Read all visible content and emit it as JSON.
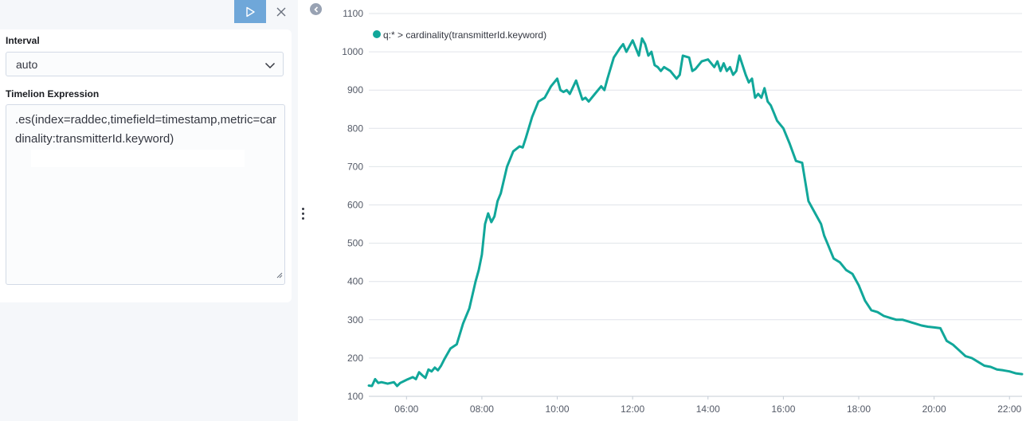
{
  "toolbar": {
    "run_icon": "play-icon",
    "close_icon": "close-icon"
  },
  "form": {
    "interval_label": "Interval",
    "interval_value": "auto",
    "expression_label": "Timelion Expression",
    "expression_value": ".es(index=raddec,timefield=timestamp,metric=cardinality:transmitterId.keyword)"
  },
  "colors": {
    "series": "#11a79a",
    "run_button": "#6fa7d9",
    "sidebar_bg": "#f5f7fa"
  },
  "chart_data": {
    "type": "line",
    "title": "",
    "xlabel": "",
    "ylabel": "",
    "legend_position": "top-left",
    "grid": true,
    "ylim": [
      100,
      1100
    ],
    "xlim": [
      "05:00",
      "22:20"
    ],
    "y_ticks": [
      "100",
      "200",
      "300",
      "400",
      "500",
      "600",
      "700",
      "800",
      "900",
      "1000",
      "1100"
    ],
    "x_ticks": [
      "06:00",
      "08:00",
      "10:00",
      "12:00",
      "14:00",
      "16:00",
      "18:00",
      "20:00",
      "22:00"
    ],
    "series": [
      {
        "name": "q:* > cardinality(transmitterId.keyword)",
        "color": "#11a79a",
        "x": [
          "05:00",
          "05:05",
          "05:10",
          "05:15",
          "05:20",
          "05:30",
          "05:40",
          "05:45",
          "05:50",
          "06:00",
          "06:10",
          "06:15",
          "06:20",
          "06:25",
          "06:30",
          "06:35",
          "06:40",
          "06:45",
          "06:50",
          "06:55",
          "07:00",
          "07:10",
          "07:20",
          "07:30",
          "07:40",
          "07:50",
          "07:55",
          "08:00",
          "08:05",
          "08:10",
          "08:15",
          "08:20",
          "08:25",
          "08:30",
          "08:40",
          "08:50",
          "09:00",
          "09:05",
          "09:10",
          "09:20",
          "09:30",
          "09:40",
          "09:50",
          "10:00",
          "10:05",
          "10:10",
          "10:15",
          "10:20",
          "10:30",
          "10:40",
          "10:45",
          "10:50",
          "11:00",
          "11:10",
          "11:15",
          "11:20",
          "11:30",
          "11:40",
          "11:45",
          "11:50",
          "12:00",
          "12:10",
          "12:15",
          "12:20",
          "12:25",
          "12:30",
          "12:35",
          "12:40",
          "12:45",
          "12:50",
          "13:00",
          "13:10",
          "13:15",
          "13:20",
          "13:30",
          "13:35",
          "13:40",
          "13:50",
          "14:00",
          "14:10",
          "14:15",
          "14:20",
          "14:25",
          "14:30",
          "14:35",
          "14:40",
          "14:45",
          "14:50",
          "15:00",
          "15:05",
          "15:10",
          "15:15",
          "15:20",
          "15:25",
          "15:30",
          "15:35",
          "15:40",
          "15:45",
          "15:50",
          "16:00",
          "16:10",
          "16:20",
          "16:30",
          "16:40",
          "16:50",
          "17:00",
          "17:05",
          "17:10",
          "17:20",
          "17:30",
          "17:40",
          "17:50",
          "18:00",
          "18:10",
          "18:20",
          "18:30",
          "18:40",
          "18:50",
          "19:00",
          "19:10",
          "19:20",
          "19:30",
          "19:40",
          "19:50",
          "20:00",
          "20:10",
          "20:20",
          "20:30",
          "20:40",
          "20:50",
          "21:00",
          "21:10",
          "21:20",
          "21:30",
          "21:40",
          "21:50",
          "22:00",
          "22:10",
          "22:20"
        ],
        "values": [
          128,
          127,
          145,
          135,
          137,
          133,
          137,
          127,
          135,
          143,
          150,
          145,
          163,
          155,
          148,
          170,
          165,
          175,
          168,
          180,
          196,
          225,
          236,
          290,
          330,
          400,
          430,
          470,
          550,
          578,
          555,
          570,
          610,
          630,
          700,
          740,
          753,
          750,
          775,
          830,
          870,
          880,
          910,
          930,
          900,
          895,
          900,
          890,
          925,
          875,
          880,
          870,
          890,
          910,
          900,
          930,
          985,
          1010,
          1020,
          1000,
          1030,
          990,
          1035,
          1020,
          990,
          1000,
          965,
          960,
          950,
          960,
          950,
          930,
          940,
          990,
          985,
          950,
          955,
          975,
          980,
          960,
          975,
          950,
          970,
          950,
          960,
          940,
          950,
          990,
          940,
          920,
          930,
          880,
          890,
          880,
          905,
          870,
          860,
          840,
          820,
          800,
          760,
          715,
          710,
          610,
          580,
          550,
          520,
          500,
          460,
          450,
          430,
          420,
          390,
          350,
          325,
          320,
          310,
          305,
          300,
          300,
          295,
          290,
          285,
          282,
          280,
          278,
          245,
          235,
          220,
          205,
          200,
          190,
          180,
          177,
          170,
          168,
          165,
          160,
          158
        ]
      }
    ]
  }
}
